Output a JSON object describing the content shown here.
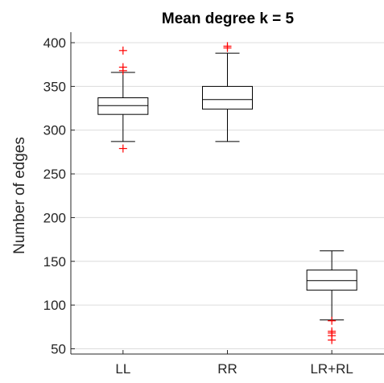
{
  "chart_data": {
    "type": "boxplot",
    "title": "Mean degree k = 5",
    "xlabel": "",
    "ylabel": "Number of edges",
    "ylim": [
      44,
      412
    ],
    "yticks": [
      50,
      100,
      150,
      200,
      250,
      300,
      350,
      400
    ],
    "grid": true,
    "colors": {
      "box": "#000000",
      "outlier": "#ff0000",
      "grid": "#dcdcdc",
      "axis": "#262626"
    },
    "categories": [
      "LL",
      "RR",
      "LR+RL"
    ],
    "boxes": [
      {
        "name": "LL",
        "whisker_low": 287,
        "q1": 318,
        "median": 328,
        "q3": 337,
        "whisker_high": 366,
        "outliers": [
          279,
          368,
          372,
          391
        ]
      },
      {
        "name": "RR",
        "whisker_low": 287,
        "q1": 324,
        "median": 335,
        "q3": 350,
        "whisker_high": 388,
        "outliers": [
          394,
          396
        ]
      },
      {
        "name": "LR+RL",
        "whisker_low": 83,
        "q1": 117,
        "median": 128,
        "q3": 140,
        "whisker_high": 162,
        "outliers": [
          82,
          70,
          68,
          65,
          60
        ]
      }
    ]
  }
}
